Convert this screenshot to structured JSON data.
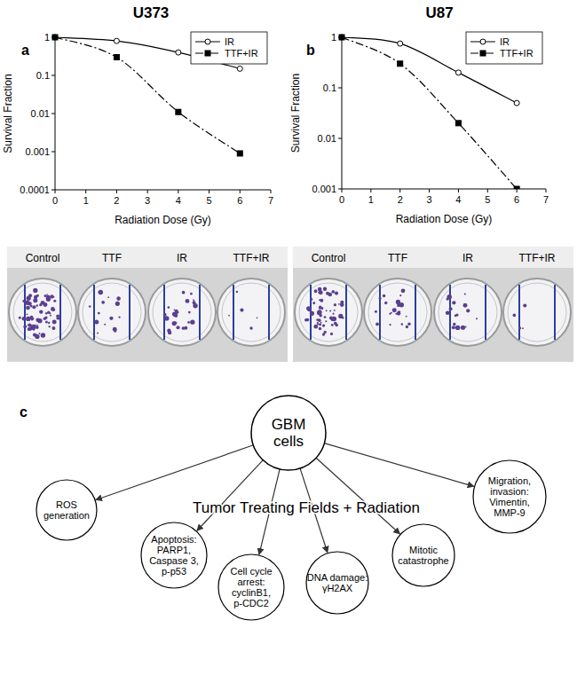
{
  "chart_data": [
    {
      "type": "line",
      "title": "U373",
      "annotations": [
        "a"
      ],
      "x_label": "Radiation Dose (Gy)",
      "y_label": "Survival Fraction",
      "x": [
        0,
        2,
        4,
        6
      ],
      "series": [
        {
          "name": "IR",
          "color": "#000000",
          "marker": "circle",
          "line_style": "solid",
          "values": [
            1,
            0.8,
            0.4,
            0.15
          ]
        },
        {
          "name": "TTF+IR",
          "color": "#000000",
          "marker": "square",
          "line_style": "dashdot",
          "values": [
            1,
            0.3,
            0.011,
            0.0009
          ]
        }
      ],
      "log": "y",
      "legend": "top-right",
      "xlim": [
        0,
        7
      ],
      "xticks": [
        0,
        1,
        2,
        3,
        4,
        5,
        6,
        7
      ],
      "ylim": [
        0.0001,
        1
      ],
      "yticks": [
        1,
        0.1,
        0.01,
        0.001,
        0.0001
      ]
    },
    {
      "type": "line",
      "title": "U87",
      "annotations": [
        "b"
      ],
      "x_label": "Radiation Dose (Gy)",
      "y_label": "Survival Fraction",
      "x": [
        0,
        2,
        4,
        6
      ],
      "series": [
        {
          "name": "IR",
          "color": "#000000",
          "marker": "circle",
          "line_style": "solid",
          "values": [
            1,
            0.75,
            0.2,
            0.05
          ]
        },
        {
          "name": "TTF+IR",
          "color": "#000000",
          "marker": "square",
          "line_style": "dashdot",
          "values": [
            1,
            0.3,
            0.02,
            0.001
          ]
        }
      ],
      "log": "y",
      "legend": "top-right",
      "xlim": [
        0,
        7
      ],
      "xticks": [
        0,
        1,
        2,
        3,
        4,
        5,
        6,
        7
      ],
      "ylim": [
        0.001,
        1
      ],
      "yticks": [
        1,
        0.1,
        0.01,
        0.001
      ]
    }
  ],
  "plates": [
    {
      "labels": [
        "Control",
        "TTF",
        "IR",
        "TTF+IR"
      ],
      "colony_counts": [
        70,
        14,
        26,
        5
      ]
    },
    {
      "labels": [
        "Control",
        "TTF",
        "IR",
        "TTF+IR"
      ],
      "colony_counts": [
        55,
        22,
        16,
        4
      ]
    }
  ],
  "diagram": {
    "label": "c",
    "center": [
      "GBM",
      "cells"
    ],
    "treatment": "Tumor Treating Fields + Radiation",
    "effects": [
      [
        "ROS",
        "generation"
      ],
      [
        "Apoptosis:",
        "PARP1,",
        "Caspase 3,",
        "p-p53"
      ],
      [
        "Cell cycle",
        "arrest:",
        "cyclinB1,",
        "p-CDC2"
      ],
      [
        "DNA damage:",
        "γH2AX"
      ],
      [
        "Mitotic",
        "catastrophe"
      ],
      [
        "Migration,",
        "invasion:",
        "Vimentin,",
        "MMP-9"
      ]
    ]
  }
}
